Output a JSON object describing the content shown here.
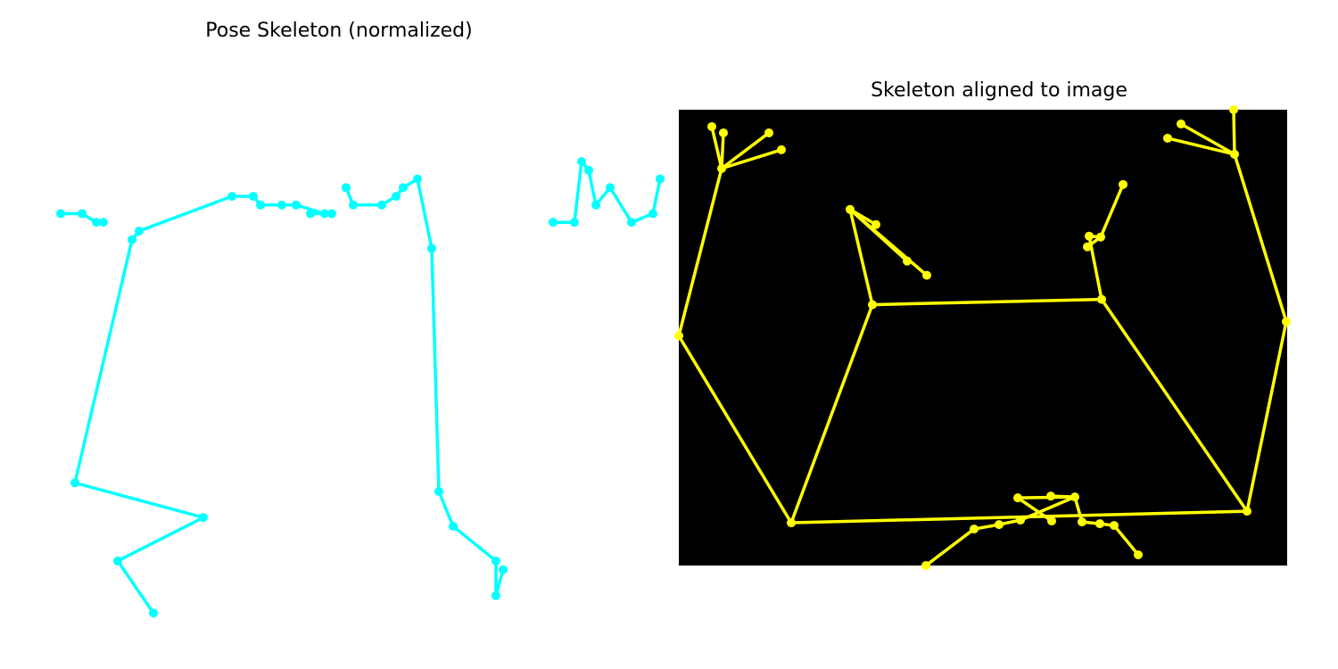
{
  "panels": {
    "left_title": "Pose Skeleton (normalized)",
    "right_title": "Skeleton aligned to image"
  },
  "chart_data": [
    {
      "type": "scatter",
      "title": "Pose Skeleton (normalized)",
      "axes_visible": false,
      "background": "#ffffff",
      "color": "#00ffff",
      "xlim": [
        0.04,
        0.94
      ],
      "ylim": [
        -0.04,
        0.56
      ],
      "y_inverted": true,
      "points": [
        [
          0.1,
          0.09
        ],
        [
          0.13,
          0.09
        ],
        [
          0.15,
          0.1
        ],
        [
          0.16,
          0.1
        ],
        [
          0.23,
          0.55
        ],
        [
          0.18,
          0.49
        ],
        [
          0.3,
          0.44
        ],
        [
          0.12,
          0.4
        ],
        [
          0.2,
          0.12
        ],
        [
          0.21,
          0.11
        ],
        [
          0.34,
          0.07
        ],
        [
          0.37,
          0.07
        ],
        [
          0.38,
          0.08
        ],
        [
          0.41,
          0.08
        ],
        [
          0.43,
          0.08
        ],
        [
          0.47,
          0.09
        ],
        [
          0.48,
          0.09
        ],
        [
          0.45,
          0.09
        ],
        [
          0.5,
          0.06
        ],
        [
          0.51,
          0.08
        ],
        [
          0.55,
          0.08
        ],
        [
          0.57,
          0.07
        ],
        [
          0.58,
          0.06
        ],
        [
          0.6,
          0.05
        ],
        [
          0.62,
          0.13
        ],
        [
          0.63,
          0.41
        ],
        [
          0.65,
          0.45
        ],
        [
          0.71,
          0.49
        ],
        [
          0.71,
          0.53
        ],
        [
          0.72,
          0.5
        ],
        [
          0.79,
          0.1
        ],
        [
          0.82,
          0.1
        ],
        [
          0.83,
          0.03
        ],
        [
          0.84,
          0.04
        ],
        [
          0.85,
          0.08
        ],
        [
          0.87,
          0.06
        ],
        [
          0.9,
          0.1
        ],
        [
          0.93,
          0.09
        ],
        [
          0.94,
          0.05
        ]
      ],
      "segments": [
        [
          0,
          1
        ],
        [
          1,
          2
        ],
        [
          2,
          3
        ],
        [
          4,
          5
        ],
        [
          5,
          6
        ],
        [
          6,
          7
        ],
        [
          7,
          8
        ],
        [
          8,
          9
        ],
        [
          9,
          10
        ],
        [
          10,
          11
        ],
        [
          11,
          12
        ],
        [
          12,
          13
        ],
        [
          13,
          14
        ],
        [
          14,
          15
        ],
        [
          15,
          16
        ],
        [
          16,
          17
        ],
        [
          18,
          19
        ],
        [
          19,
          20
        ],
        [
          20,
          21
        ],
        [
          21,
          22
        ],
        [
          22,
          23
        ],
        [
          23,
          24
        ],
        [
          24,
          25
        ],
        [
          25,
          26
        ],
        [
          26,
          27
        ],
        [
          27,
          28
        ],
        [
          28,
          29
        ],
        [
          30,
          31
        ],
        [
          31,
          32
        ],
        [
          32,
          33
        ],
        [
          33,
          34
        ],
        [
          34,
          35
        ],
        [
          35,
          36
        ],
        [
          36,
          37
        ],
        [
          37,
          38
        ]
      ]
    },
    {
      "type": "scatter",
      "title": "Skeleton aligned to image",
      "axes_visible": false,
      "background": "#000000",
      "color": "#ffff00",
      "xlim": [
        0,
        682
      ],
      "ylim": [
        0,
        512
      ],
      "y_inverted": true,
      "points": [
        [
          37,
          19
        ],
        [
          50,
          26
        ],
        [
          48,
          66
        ],
        [
          101,
          26
        ],
        [
          115,
          45
        ],
        [
          0,
          254
        ],
        [
          126,
          464
        ],
        [
          192,
          112
        ],
        [
          217,
          219
        ],
        [
          221,
          129
        ],
        [
          256,
          170
        ],
        [
          278,
          186
        ],
        [
          277,
          512
        ],
        [
          331,
          471
        ],
        [
          359,
          466
        ],
        [
          383,
          461
        ],
        [
          380,
          436
        ],
        [
          417,
          434
        ],
        [
          418,
          462
        ],
        [
          444,
          435
        ],
        [
          452,
          463
        ],
        [
          472,
          465
        ],
        [
          488,
          467
        ],
        [
          474,
          213
        ],
        [
          460,
          142
        ],
        [
          473,
          143
        ],
        [
          498,
          84
        ],
        [
          515,
          500
        ],
        [
          458,
          154
        ],
        [
          548,
          32
        ],
        [
          563,
          16
        ],
        [
          622,
          0
        ],
        [
          623,
          50
        ],
        [
          637,
          451
        ],
        [
          681,
          238
        ]
      ],
      "segments": [
        [
          0,
          2
        ],
        [
          1,
          2
        ],
        [
          3,
          2
        ],
        [
          4,
          2
        ],
        [
          2,
          5
        ],
        [
          5,
          6
        ],
        [
          6,
          33
        ],
        [
          6,
          8
        ],
        [
          8,
          7
        ],
        [
          7,
          10
        ],
        [
          7,
          11
        ],
        [
          7,
          9
        ],
        [
          8,
          23
        ],
        [
          23,
          33
        ],
        [
          23,
          24
        ],
        [
          24,
          25
        ],
        [
          25,
          26
        ],
        [
          25,
          28
        ],
        [
          33,
          34
        ],
        [
          34,
          32
        ],
        [
          32,
          31
        ],
        [
          32,
          30
        ],
        [
          32,
          29
        ],
        [
          12,
          13
        ],
        [
          13,
          14
        ],
        [
          14,
          15
        ],
        [
          15,
          19
        ],
        [
          19,
          20
        ],
        [
          20,
          21
        ],
        [
          21,
          22
        ],
        [
          22,
          27
        ],
        [
          19,
          16
        ],
        [
          19,
          17
        ],
        [
          16,
          18
        ]
      ]
    }
  ]
}
